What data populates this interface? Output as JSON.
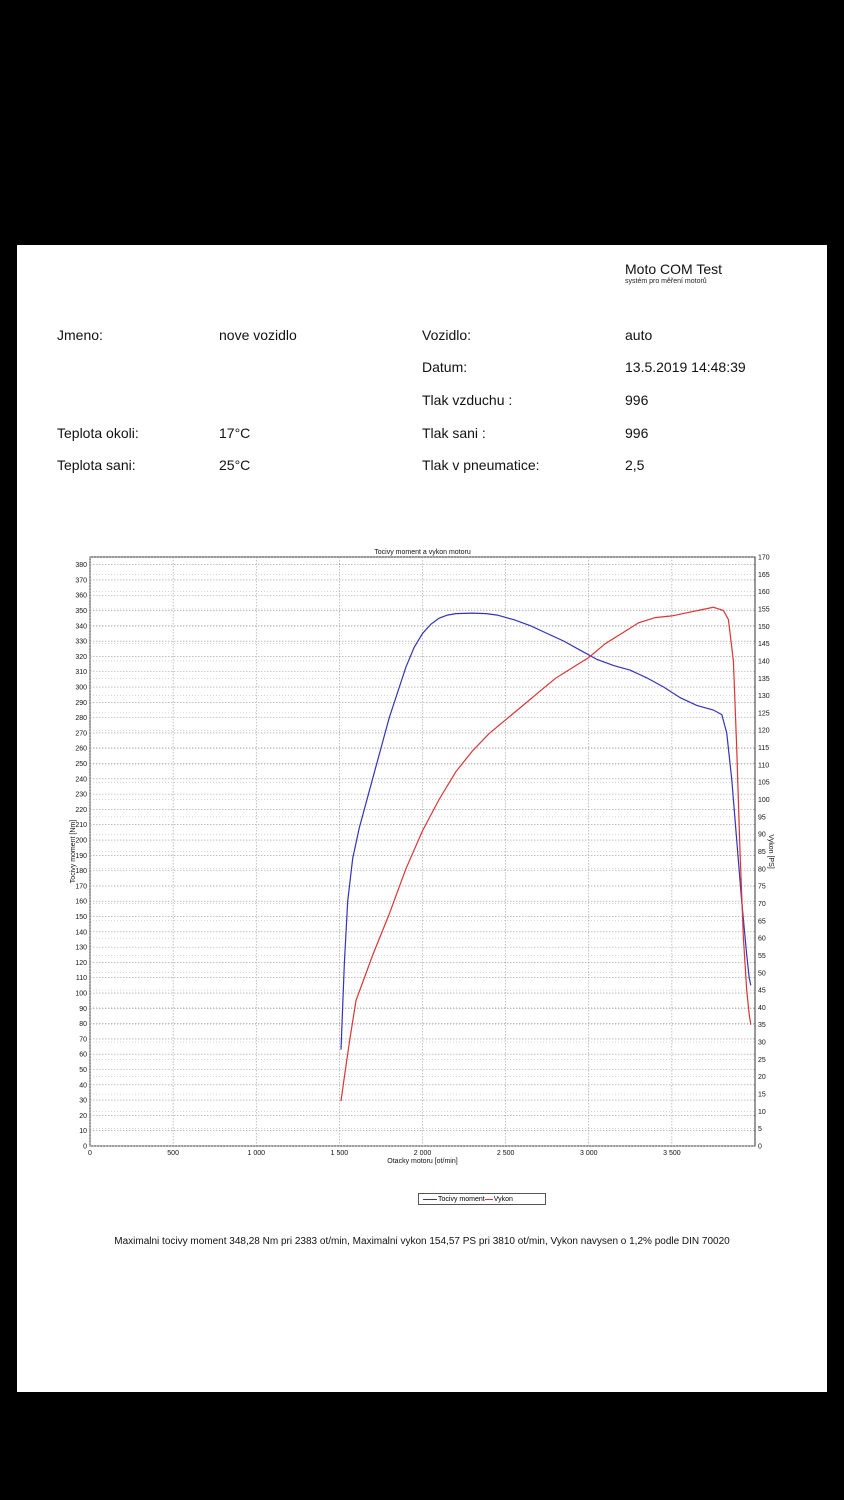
{
  "header": {
    "app_name": "Moto COM Test",
    "app_subtitle": "systém pro měření motorů"
  },
  "fields": [
    {
      "label": "Jmeno:",
      "value": "nove vozidlo"
    },
    {
      "label": "Vozidlo:",
      "value": "auto"
    },
    {
      "label": "Datum:",
      "value": "13.5.2019 14:48:39"
    },
    {
      "label": "Tlak vzduchu :",
      "value": "996"
    },
    {
      "label": "Teplota okoli:",
      "value": "17°C"
    },
    {
      "label": "Tlak sani :",
      "value": "996"
    },
    {
      "label": "Teplota sani:",
      "value": "25°C"
    },
    {
      "label": "Tlak v pneumatice:",
      "value": "2,5"
    }
  ],
  "chart_data": {
    "type": "line",
    "title": "Tocivy moment a vykon motoru",
    "xlabel": "Otacky motoru [ot/min]",
    "ylabel": "Tocivy moment [Nm]",
    "y2label": "Vykon [PS]",
    "xlim": [
      0,
      4000
    ],
    "ylim": [
      0,
      385
    ],
    "y2lim": [
      0,
      170
    ],
    "x_ticks": [
      0,
      500,
      1000,
      1500,
      2000,
      2500,
      3000,
      3500
    ],
    "x_tick_labels": [
      "0",
      "500",
      "1 000",
      "1 500",
      "2 000",
      "2 500",
      "3 000",
      "3 500"
    ],
    "y_ticks": [
      0,
      10,
      20,
      30,
      40,
      50,
      60,
      70,
      80,
      90,
      100,
      110,
      120,
      130,
      140,
      150,
      160,
      170,
      180,
      190,
      200,
      210,
      220,
      230,
      240,
      250,
      260,
      270,
      280,
      290,
      300,
      310,
      320,
      330,
      340,
      350,
      360,
      370,
      380
    ],
    "y2_ticks": [
      0,
      5,
      10,
      15,
      20,
      25,
      30,
      35,
      40,
      45,
      50,
      55,
      60,
      65,
      70,
      75,
      80,
      85,
      90,
      95,
      100,
      105,
      110,
      115,
      120,
      125,
      130,
      135,
      140,
      145,
      150,
      155,
      160,
      165,
      170
    ],
    "grid": true,
    "series": [
      {
        "name": "Tocivy moment",
        "color": "#3333bb",
        "axis": "left",
        "x": [
          1510,
          1530,
          1550,
          1580,
          1620,
          1700,
          1800,
          1900,
          1950,
          2000,
          2050,
          2100,
          2150,
          2200,
          2300,
          2383,
          2450,
          2550,
          2650,
          2750,
          2850,
          2950,
          3050,
          3150,
          3250,
          3350,
          3450,
          3550,
          3650,
          3750,
          3800,
          3830,
          3860,
          3890,
          3920,
          3950,
          3965,
          3975
        ],
        "y": [
          63,
          120,
          160,
          188,
          208,
          240,
          280,
          313,
          326,
          335,
          341,
          345,
          347,
          348,
          348.3,
          348,
          347,
          344,
          340,
          335,
          330,
          324,
          318,
          314,
          311,
          306,
          300,
          293,
          288,
          285,
          282,
          270,
          240,
          200,
          160,
          125,
          110,
          105
        ]
      },
      {
        "name": "Vykon",
        "color": "#dd3333",
        "axis": "right",
        "x": [
          1510,
          1530,
          1560,
          1600,
          1700,
          1800,
          1900,
          2000,
          2100,
          2200,
          2300,
          2400,
          2500,
          2600,
          2700,
          2800,
          2900,
          3000,
          3100,
          3200,
          3300,
          3400,
          3500,
          3600,
          3700,
          3750,
          3810,
          3840,
          3870,
          3890,
          3910,
          3930,
          3950,
          3965,
          3975
        ],
        "y": [
          13,
          20,
          30,
          42,
          55,
          67,
          80,
          91,
          100,
          108,
          114,
          119,
          123,
          127,
          131,
          135,
          138,
          141,
          145,
          148,
          151,
          152.5,
          153,
          154,
          155,
          155.5,
          154.57,
          152,
          140,
          115,
          85,
          60,
          45,
          38,
          35
        ]
      }
    ],
    "legend": [
      "Tocivy moment",
      "Vykon"
    ],
    "legend_position": "bottom"
  },
  "summary": "Maximalni tocivy moment 348,28 Nm pri 2383 ot/min,  Maximalni vykon 154,57 PS pri 3810 ot/min,  Vykon navysen o 1,2% podle DIN 70020"
}
